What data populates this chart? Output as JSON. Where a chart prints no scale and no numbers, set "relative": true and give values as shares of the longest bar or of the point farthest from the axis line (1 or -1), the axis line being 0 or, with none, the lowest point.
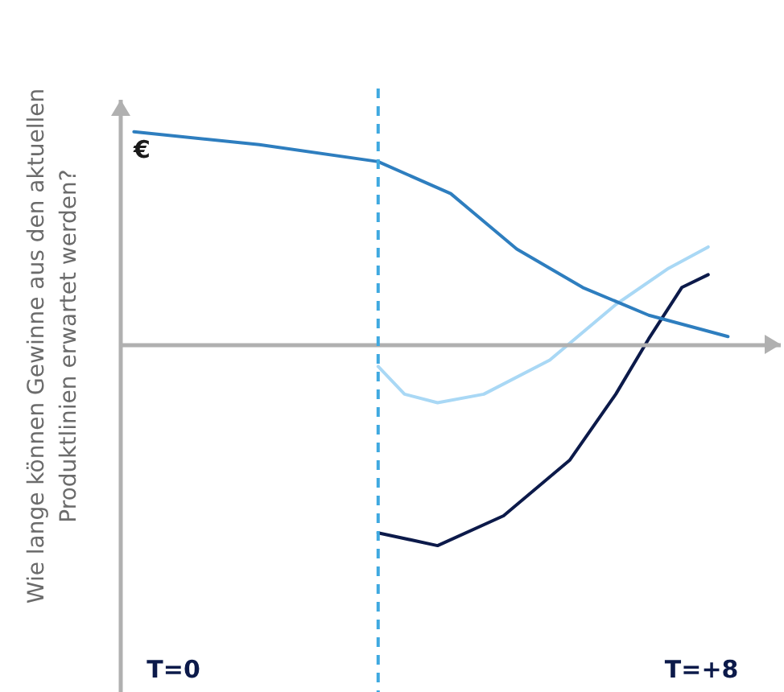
{
  "chart_data": {
    "type": "line",
    "relative": true,
    "ylabel": "Wie lange können Gewinne aus den aktuellen Produktlinien erwartet werden?",
    "annotations": [
      "€"
    ],
    "xlim": [
      -0.8,
      9.2
    ],
    "xticks": [
      {
        "value": 0,
        "label": "T=0"
      },
      {
        "value": 8,
        "label": "T=+8"
      }
    ],
    "series": [
      {
        "color": "#2e7ebf",
        "x": [
          -0.6,
          1.3,
          3.1,
          4.2,
          5.2,
          6.2,
          7.2,
          8.4
        ],
        "values": [
          1.0,
          0.94,
          0.86,
          0.71,
          0.45,
          0.27,
          0.14,
          0.04
        ]
      },
      {
        "color": "#a9d8f5",
        "x": [
          3.1,
          3.5,
          4.0,
          4.7,
          5.7,
          6.7,
          7.5,
          8.1
        ],
        "values": [
          -0.1,
          -0.23,
          -0.27,
          -0.23,
          -0.07,
          0.19,
          0.36,
          0.46
        ]
      },
      {
        "color": "#0c1a4a",
        "x": [
          3.1,
          4.0,
          5.0,
          6.0,
          6.7,
          7.2,
          7.7,
          8.1
        ],
        "values": [
          -0.88,
          -0.94,
          -0.8,
          -0.54,
          -0.23,
          0.03,
          0.27,
          0.33
        ]
      }
    ],
    "ref_lines": [
      {
        "axis": "x",
        "value": 3.1,
        "color": "#3fa9e0",
        "line_style": "dashed"
      }
    ],
    "grid": false,
    "legend": false,
    "marker": "none",
    "line_style": "solid"
  }
}
